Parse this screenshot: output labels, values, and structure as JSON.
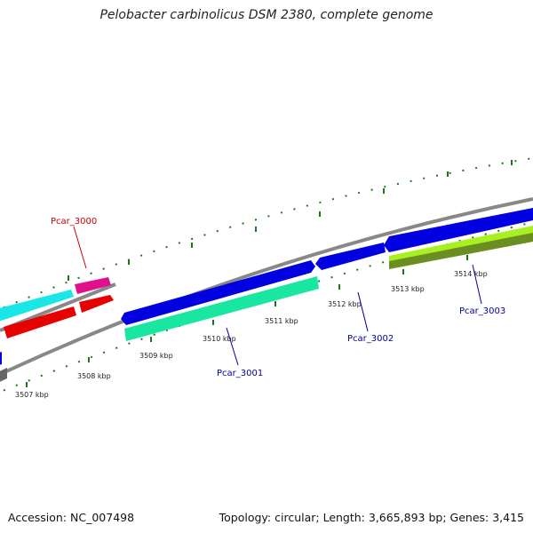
{
  "title": "Pelobacter carbinolicus DSM 2380, complete genome",
  "footer": {
    "accession": "Accession: NC_007498",
    "summary": "Topology: circular; Length: 3,665,893 bp; Genes: 3,415"
  },
  "scale_labels": [
    "3507 kbp",
    "3508 kbp",
    "3509 kbp",
    "3510 kbp",
    "3511 kbp",
    "3512 kbp",
    "3513 kbp",
    "3514 kbp"
  ],
  "gene_labels": [
    {
      "name": "Pcar_3000",
      "color": "#cc0000"
    },
    {
      "name": "Pcar_3001",
      "color": "#000099"
    },
    {
      "name": "Pcar_3002",
      "color": "#000099"
    },
    {
      "name": "Pcar_3003",
      "color": "#000099"
    }
  ],
  "colors": {
    "backbone": "#888888",
    "ticks": "#1a7a1a",
    "forward_gene": "#0000e0",
    "reverse_gene_teal": "#19e6a0",
    "cyan_gene": "#19e6e6",
    "pink_gene": "#e0108c",
    "red_gene": "#e60000",
    "lime_gene": "#a8f020",
    "olive_gene": "#6b8e23"
  }
}
